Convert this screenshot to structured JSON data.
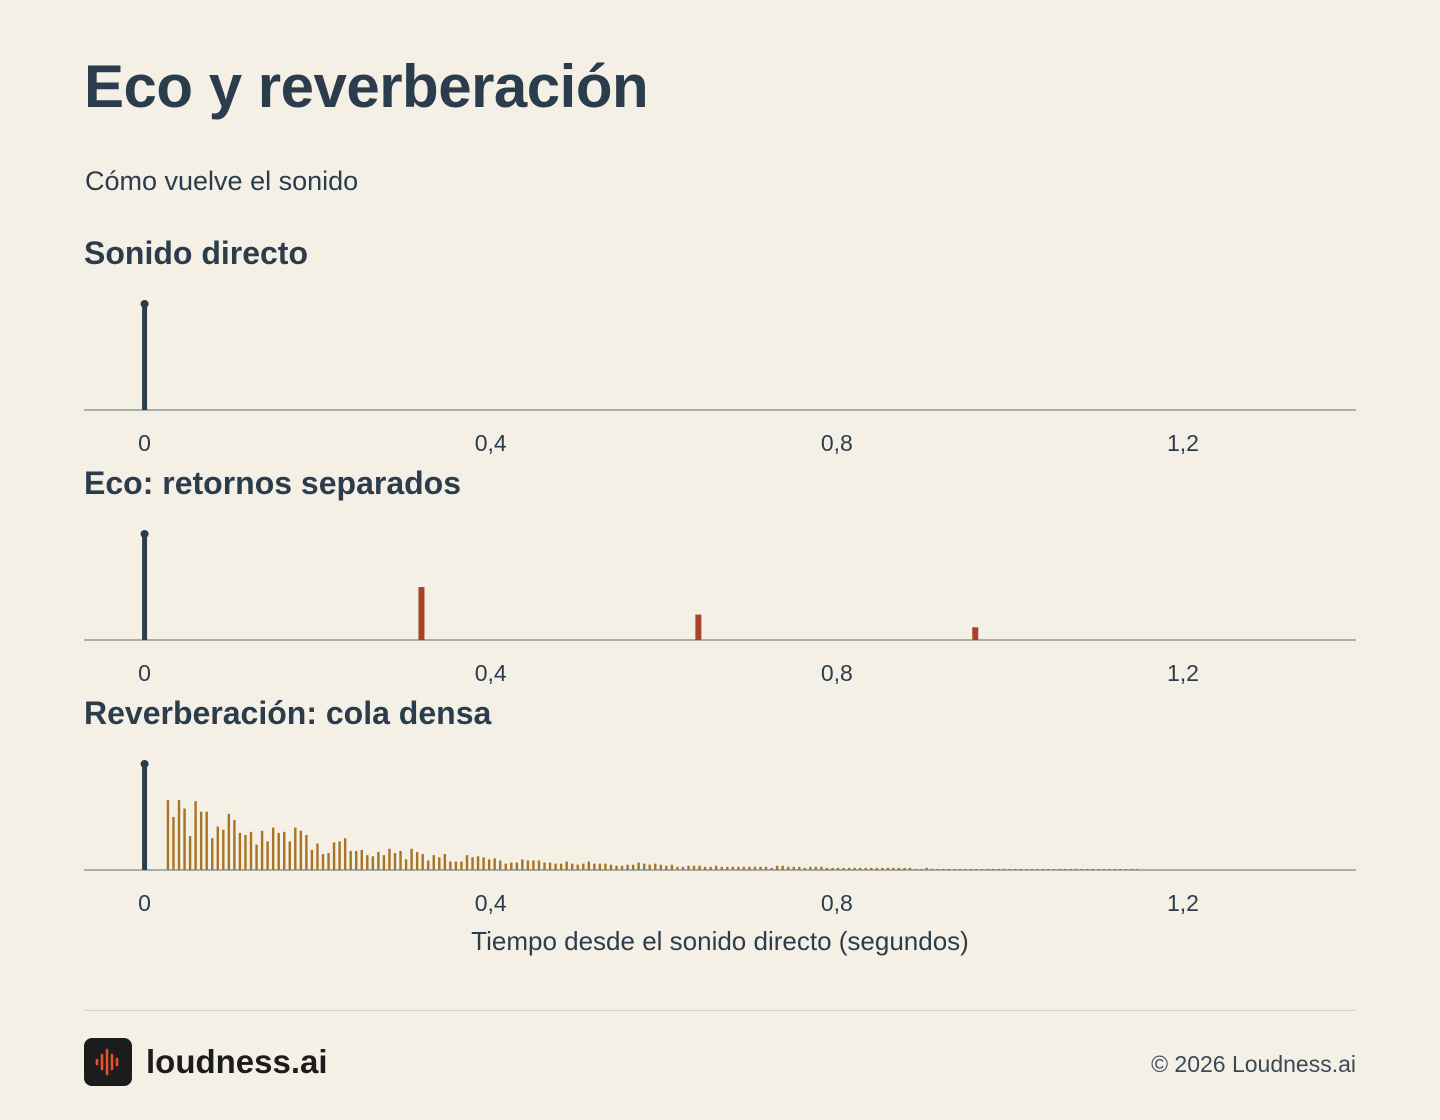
{
  "title": "Eco y reverberación",
  "subtitle": "Cómo vuelve el sonido",
  "footer": {
    "brand_name": "loudness.ai",
    "copyright": "© 2026 Loudness.ai",
    "logo_icon": "waveform-icon"
  },
  "colors": {
    "background": "#f5f0e6",
    "direct": "#2b3d4c",
    "echo": "#a8432b",
    "reverb": "#a67423",
    "logo_accent": "#e8502a"
  },
  "chart_data": [
    {
      "type": "bar",
      "title": "Sonido directo",
      "x_ticks": [
        "0",
        "0,4",
        "0,8",
        "1,2"
      ],
      "xlim": [
        -0.07,
        1.4
      ],
      "direct": {
        "x": 0,
        "amplitude": 1.0
      },
      "series": []
    },
    {
      "type": "bar",
      "title": "Eco: retornos separados",
      "x_ticks": [
        "0",
        "0,4",
        "0,8",
        "1,2"
      ],
      "xlim": [
        -0.07,
        1.4
      ],
      "direct": {
        "x": 0,
        "amplitude": 1.0
      },
      "series": [
        {
          "x": [
            0.32,
            0.64,
            0.96
          ],
          "values": [
            0.5,
            0.24,
            0.12
          ]
        }
      ]
    },
    {
      "type": "bar",
      "title": "Reverberación: cola densa",
      "xlabel": "Tiempo desde el sonido directo (segundos)",
      "x_ticks": [
        "0",
        "0,4",
        "0,8",
        "1,2"
      ],
      "xlim": [
        -0.07,
        1.4
      ],
      "direct": {
        "x": 0,
        "amplitude": 1.0
      },
      "series": [
        {
          "x_start": 0.027,
          "x_step": 0.0064,
          "count": 176,
          "decay_time": 0.22,
          "values": [
            0.66,
            0.5,
            0.66,
            0.58,
            0.32,
            0.65,
            0.55,
            0.55,
            0.3,
            0.41,
            0.38,
            0.53,
            0.47,
            0.35,
            0.33,
            0.36,
            0.24,
            0.37,
            0.27,
            0.4,
            0.35,
            0.36,
            0.27,
            0.4,
            0.37,
            0.33,
            0.19,
            0.25,
            0.15,
            0.16,
            0.26,
            0.27,
            0.3,
            0.18,
            0.18,
            0.19,
            0.14,
            0.13,
            0.17,
            0.14,
            0.2,
            0.16,
            0.18,
            0.1,
            0.2,
            0.17,
            0.15,
            0.09,
            0.14,
            0.12,
            0.15,
            0.08,
            0.08,
            0.08,
            0.14,
            0.12,
            0.13,
            0.12,
            0.1,
            0.11,
            0.09,
            0.06,
            0.07,
            0.07,
            0.1,
            0.09,
            0.09,
            0.09,
            0.07,
            0.07,
            0.06,
            0.06,
            0.08,
            0.06,
            0.05,
            0.06,
            0.08,
            0.06,
            0.06,
            0.06,
            0.05,
            0.04,
            0.04,
            0.05,
            0.05,
            0.07,
            0.06,
            0.05,
            0.06,
            0.05,
            0.04,
            0.05,
            0.03,
            0.03,
            0.04,
            0.04,
            0.04,
            0.03,
            0.03,
            0.04,
            0.03,
            0.03,
            0.03,
            0.03,
            0.03,
            0.03,
            0.03,
            0.03,
            0.03,
            0.02,
            0.04,
            0.04,
            0.03,
            0.03,
            0.03,
            0.02,
            0.03,
            0.03,
            0.03,
            0.02,
            0.02,
            0.02,
            0.02,
            0.02,
            0.02,
            0.02,
            0.02,
            0.02,
            0.02,
            0.02,
            0.02,
            0.02,
            0.02,
            0.02,
            0.02,
            0.01,
            0.01,
            0.02,
            0.01,
            0.01,
            0.01,
            0.01,
            0.01,
            0.01,
            0.01,
            0.01,
            0.01,
            0.01,
            0.01,
            0.01,
            0.01,
            0.01,
            0.01,
            0.01,
            0.01,
            0.01,
            0.01,
            0.01,
            0.01,
            0.01,
            0.01,
            0.01,
            0.01,
            0.01,
            0.01,
            0.01,
            0.01,
            0.01,
            0.01,
            0.01,
            0.01,
            0.01,
            0.01,
            0.01,
            0.01,
            0.01,
            0.01,
            0.01,
            0.01,
            0.01,
            0.01,
            0.01
          ]
        }
      ]
    }
  ]
}
